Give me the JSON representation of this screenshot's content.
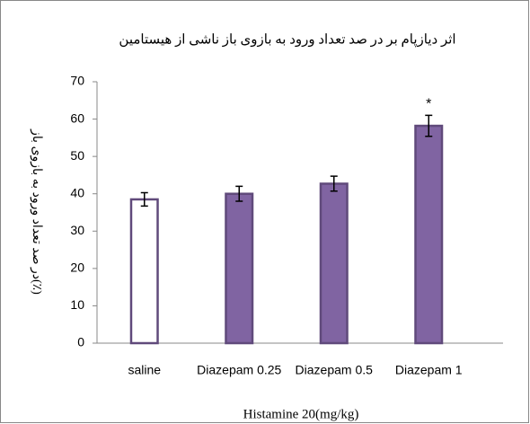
{
  "chart_data": {
    "type": "bar",
    "title": "اثر دیازپام بر در صد تعداد ورود به بازوی باز ناشی از هیستامین",
    "y_label": "در صد تعداد ورود به بازوی باز(٪)",
    "x_label": "Histamine 20(mg/kg)",
    "categories": [
      "saline",
      "Diazepam 0.25",
      "Diazepam 0.5",
      "Diazepam 1"
    ],
    "values": [
      38.5,
      40,
      42.7,
      58.2
    ],
    "errors": [
      1.8,
      2,
      2,
      2.8
    ],
    "colors": [
      "#ffffff",
      "#8064a2",
      "#8064a2",
      "#8064a2"
    ],
    "edge_color": "#604a7b",
    "annotation": "*",
    "ylim": [
      0,
      70
    ],
    "yticks": [
      0,
      10,
      20,
      30,
      40,
      50,
      60,
      70
    ],
    "grid": false
  }
}
